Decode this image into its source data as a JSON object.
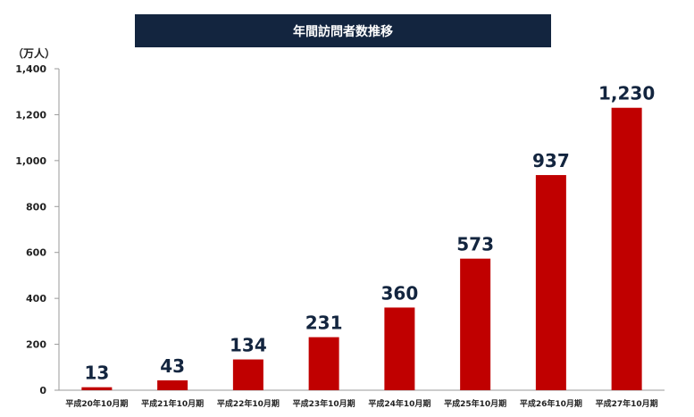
{
  "chart_data": {
    "type": "bar",
    "title": "年間訪問者数推移",
    "ylabel": "（万人）",
    "xlabel": "",
    "categories": [
      "平成20年10月期",
      "平成21年10月期",
      "平成22年10月期",
      "平成23年10月期",
      "平成24年10月期",
      "平成25年10月期",
      "平成26年10月期",
      "平成27年10月期"
    ],
    "values": [
      13,
      43,
      134,
      231,
      360,
      573,
      937,
      1230
    ],
    "data_labels": [
      "13",
      "43",
      "134",
      "231",
      "360",
      "573",
      "937",
      "1,230"
    ],
    "ylim": [
      0,
      1400
    ],
    "yticks": [
      0,
      200,
      400,
      600,
      800,
      1000,
      1200,
      1400
    ],
    "ytick_labels": [
      "0",
      "200",
      "400",
      "600",
      "800",
      "1,000",
      "1,200",
      "1,400"
    ],
    "grid": false,
    "bar_color": "#c00000",
    "title_bg": "#13253f",
    "label_color": "#13253f"
  }
}
